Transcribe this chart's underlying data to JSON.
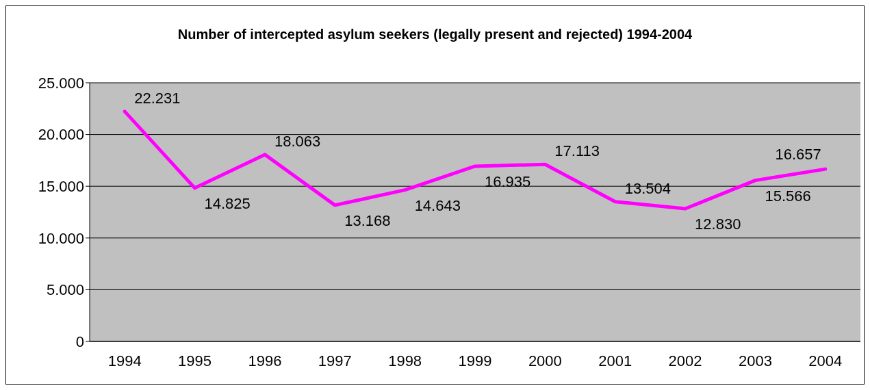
{
  "chart_data": {
    "type": "line",
    "title": "Number of intercepted asylum seekers (legally present and rejected) 1994-2004",
    "categories": [
      "1994",
      "1995",
      "1996",
      "1997",
      "1998",
      "1999",
      "2000",
      "2001",
      "2002",
      "2003",
      "2004"
    ],
    "series": [
      {
        "color": "#ff00ff",
        "values": [
          22231,
          14825,
          18063,
          13168,
          14643,
          16935,
          17113,
          13504,
          12830,
          15566,
          16657
        ],
        "value_labels": [
          "22.231",
          "14.825",
          "18.063",
          "13.168",
          "14.643",
          "16.935",
          "17.113",
          "13.504",
          "12.830",
          "15.566",
          "16.657"
        ]
      }
    ],
    "ylim": [
      0,
      25000
    ],
    "yticks": [
      0,
      {
        "value": 5000,
        "label": "5.000"
      },
      {
        "value": 10000,
        "label": "10.000"
      },
      {
        "value": 15000,
        "label": "15.000"
      },
      {
        "value": 20000,
        "label": "20.000"
      },
      {
        "value": 25000,
        "label": "25.000"
      }
    ],
    "grid": "y",
    "legend": false,
    "marker": "none",
    "line_style": "solid"
  }
}
